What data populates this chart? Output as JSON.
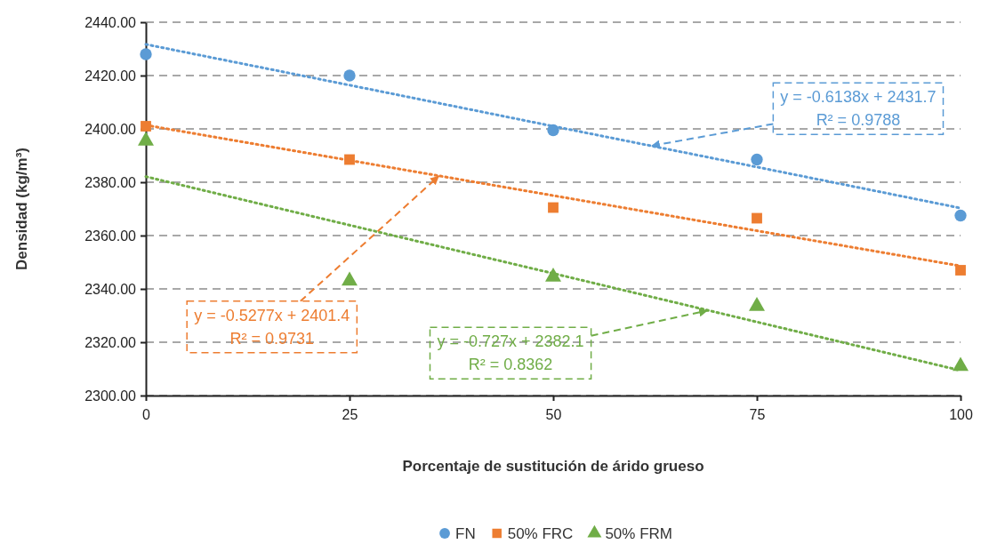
{
  "chart_data": {
    "type": "scatter",
    "xlabel": "Porcentaje de sustitución de árido grueso",
    "ylabel": "Densidad (kg/m³)",
    "x": [
      0,
      25,
      50,
      75,
      100
    ],
    "series": [
      {
        "name": "FN",
        "color": "#5b9bd5",
        "marker": "circle",
        "values": [
          2428,
          2420,
          2399.5,
          2388.5,
          2367.5
        ]
      },
      {
        "name": "50% FRC",
        "color": "#ed7d31",
        "marker": "square",
        "values": [
          2401,
          2388.5,
          2370.5,
          2366.5,
          2347
        ]
      },
      {
        "name": "50% FRM",
        "color": "#70ad47",
        "marker": "triangle",
        "values": [
          2395.5,
          2343,
          2344.5,
          2333.5,
          2311
        ]
      },
      {
        "type": "line",
        "color": "#5b9bd5",
        "line_style": "dotted",
        "marker": "none",
        "values": [
          2431.7,
          2416.4,
          2401.0,
          2385.7,
          2370.3
        ]
      },
      {
        "type": "line",
        "color": "#ed7d31",
        "line_style": "dotted",
        "marker": "none",
        "values": [
          2401.4,
          2388.2,
          2375.0,
          2361.8,
          2348.6
        ]
      },
      {
        "type": "line",
        "color": "#70ad47",
        "line_style": "dotted",
        "marker": "none",
        "values": [
          2382.1,
          2363.9,
          2345.8,
          2327.6,
          2309.4
        ]
      }
    ],
    "annotations": [
      {
        "text": "y = -0.6138x + 2431.7\nR² = 0.9788",
        "x": 62,
        "y": 2393.6
      },
      {
        "text": "y = -0.5277x + 2401.4\nR² = 0.9731",
        "x": 36,
        "y": 2382.4
      },
      {
        "text": "y = -0.727x + 2382.1\nR² = 0.8362",
        "x": 69,
        "y": 2331.9
      }
    ],
    "xlim": [
      0,
      100
    ],
    "xticks": [
      0,
      25,
      50,
      75,
      100
    ],
    "ylim": [
      2300,
      2440
    ],
    "yticks": [
      {
        "value": 2300,
        "label": "2300.00"
      },
      {
        "value": 2320,
        "label": "2320.00"
      },
      {
        "value": 2340,
        "label": "2340.00"
      },
      {
        "value": 2360,
        "label": "2360.00"
      },
      {
        "value": 2380,
        "label": "2380.00"
      },
      {
        "value": 2400,
        "label": "2400.00"
      },
      {
        "value": 2420,
        "label": "2420.00"
      },
      {
        "value": 2440,
        "label": "2440.00"
      }
    ],
    "grid": "y",
    "legend": "bottom"
  }
}
